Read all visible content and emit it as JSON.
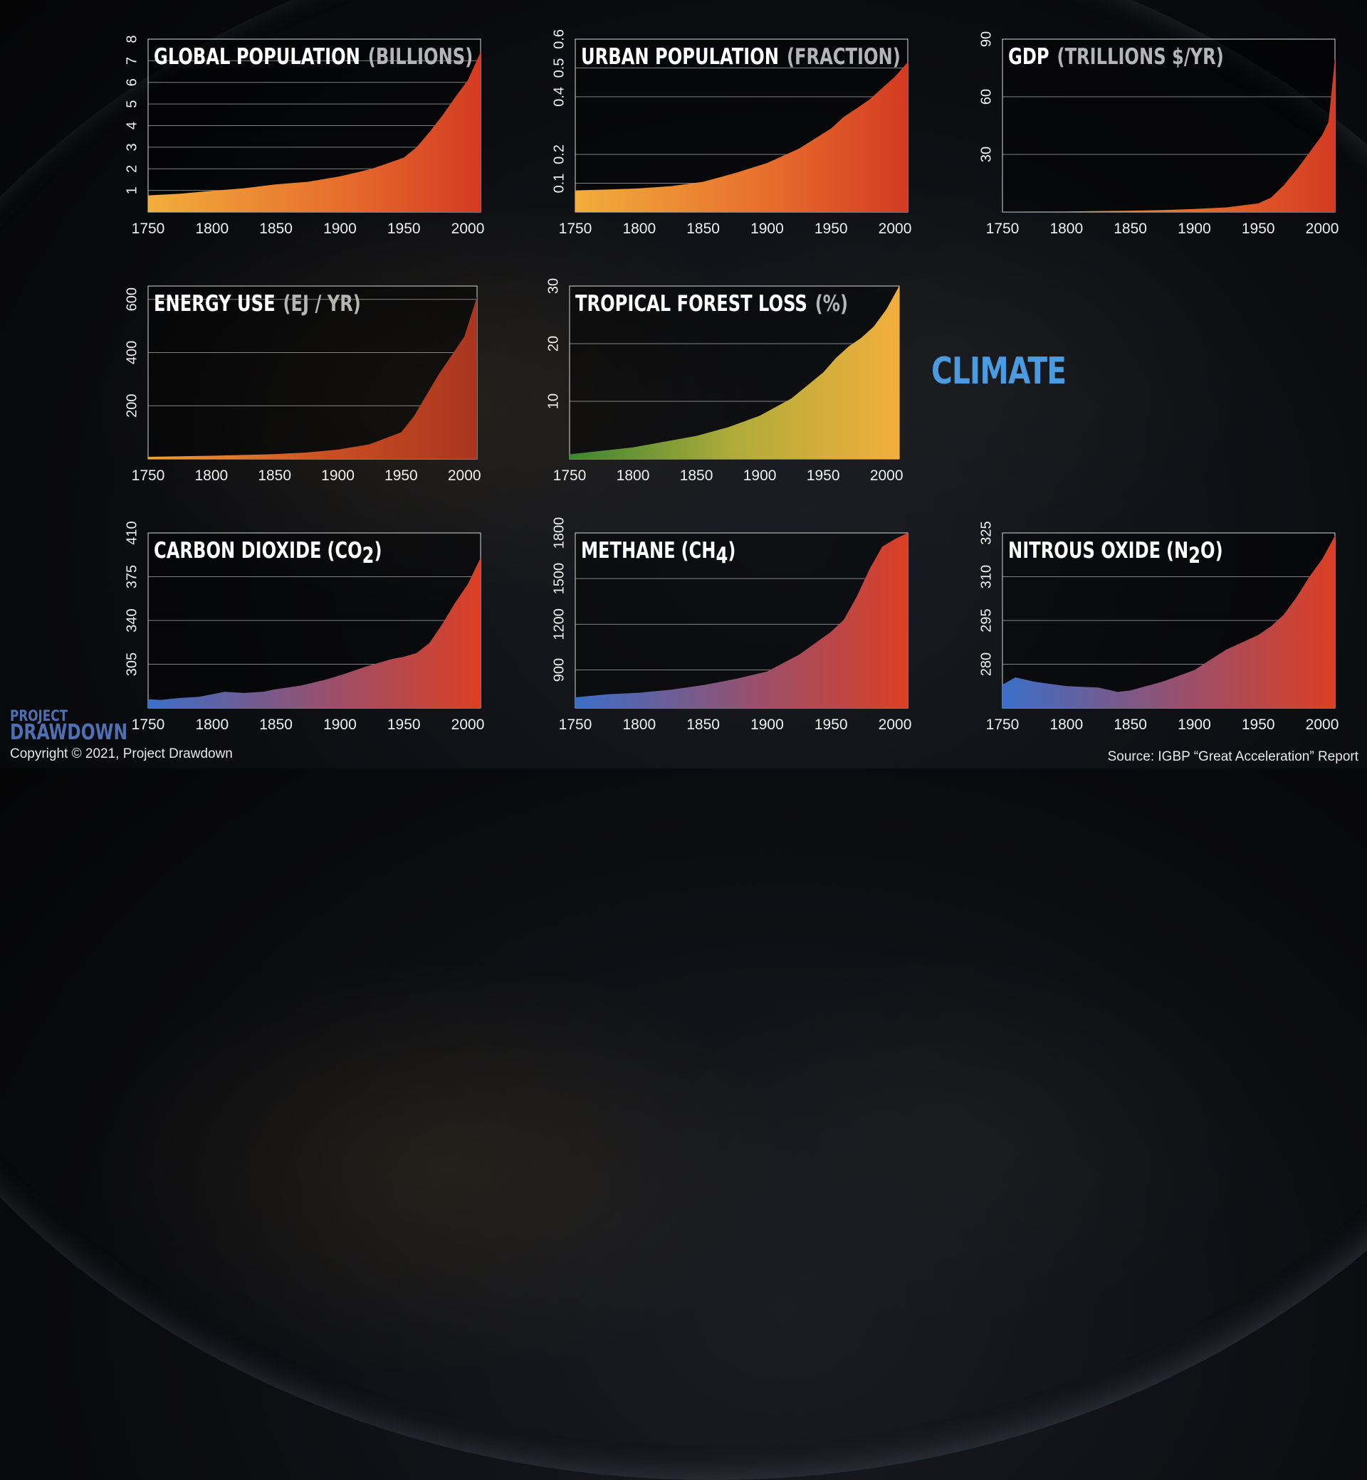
{
  "climate_label": "CLIMATE",
  "logo": {
    "line1": "PROJECT",
    "line2": "DRAWDOWN"
  },
  "copyright": "Copyright © 2021, Project Drawdown",
  "source": "Source: IGBP “Great Acceleration” Report",
  "colors": {
    "climate_label": "#4a9be0",
    "logo": "#4d6fb3",
    "warm_start": "#f0a83a",
    "warm_end": "#d63a22",
    "cool_start": "#3a6fc8",
    "forest_start": "#3f8a35",
    "forest_end": "#f0a83a"
  },
  "chart_data": [
    {
      "id": "global-population",
      "type": "area",
      "title": "GLOBAL POPULATION",
      "unit": "(BILLIONS)",
      "x": [
        1750,
        1775,
        1800,
        1825,
        1850,
        1860,
        1875,
        1900,
        1925,
        1950,
        1960,
        1970,
        1980,
        1990,
        2000,
        2010
      ],
      "y": [
        0.77,
        0.85,
        0.98,
        1.1,
        1.28,
        1.33,
        1.4,
        1.65,
        2.0,
        2.52,
        3.0,
        3.7,
        4.45,
        5.3,
        6.1,
        7.4
      ],
      "xlim": [
        1750,
        2010
      ],
      "ylim": [
        0,
        8
      ],
      "xticks": [
        1750,
        1800,
        1850,
        1900,
        1950,
        2000
      ],
      "yticks": [
        1,
        2,
        3,
        4,
        5,
        6,
        7,
        8
      ],
      "grid": true,
      "gradient": "warm"
    },
    {
      "id": "urban-population",
      "type": "area",
      "title": "URBAN POPULATION",
      "unit": "(FRACTION)",
      "x": [
        1750,
        1775,
        1800,
        1825,
        1850,
        1875,
        1900,
        1925,
        1950,
        1960,
        1970,
        1980,
        1990,
        2000,
        2010
      ],
      "y": [
        0.075,
        0.078,
        0.082,
        0.09,
        0.105,
        0.135,
        0.17,
        0.22,
        0.29,
        0.33,
        0.36,
        0.39,
        0.43,
        0.47,
        0.52
      ],
      "xlim": [
        1750,
        2010
      ],
      "ylim": [
        0,
        0.6
      ],
      "xticks": [
        1750,
        1800,
        1850,
        1900,
        1950,
        2000
      ],
      "yticks": [
        0.1,
        0.2,
        0.4,
        0.5,
        0.6
      ],
      "grid": true,
      "gradient": "warm"
    },
    {
      "id": "gdp",
      "type": "area",
      "title": "GDP",
      "unit": "(TRILLIONS $/YR)",
      "x": [
        1750,
        1800,
        1850,
        1875,
        1900,
        1925,
        1950,
        1960,
        1970,
        1980,
        1990,
        2000,
        2005,
        2010
      ],
      "y": [
        0.2,
        0.3,
        0.7,
        1.0,
        1.6,
        2.4,
        4.5,
        7.5,
        14,
        22,
        31,
        40,
        47,
        80
      ],
      "xlim": [
        1750,
        2010
      ],
      "ylim": [
        0,
        90
      ],
      "xticks": [
        1750,
        1800,
        1850,
        1900,
        1950,
        2000
      ],
      "yticks": [
        30,
        60,
        90
      ],
      "grid": true,
      "gradient": "warm"
    },
    {
      "id": "energy-use",
      "type": "area",
      "title": "ENERGY USE",
      "unit": "(EJ / YR)",
      "x": [
        1750,
        1800,
        1850,
        1875,
        1900,
        1925,
        1950,
        1960,
        1970,
        1980,
        1990,
        2000,
        2010
      ],
      "y": [
        8,
        12,
        18,
        24,
        35,
        55,
        100,
        160,
        240,
        320,
        390,
        460,
        610
      ],
      "xlim": [
        1750,
        2010
      ],
      "ylim": [
        0,
        650
      ],
      "xticks": [
        1750,
        1800,
        1850,
        1900,
        1950,
        2000
      ],
      "yticks": [
        200,
        400,
        600
      ],
      "grid": true,
      "gradient": "warm-dark"
    },
    {
      "id": "tropical-forest-loss",
      "type": "area",
      "title": "TROPICAL FOREST LOSS",
      "unit": "(%)",
      "x": [
        1750,
        1800,
        1850,
        1875,
        1900,
        1925,
        1950,
        1960,
        1970,
        1980,
        1990,
        2000,
        2010
      ],
      "y": [
        0.8,
        2.0,
        4.0,
        5.5,
        7.5,
        10.5,
        15,
        17.5,
        19.5,
        21,
        23,
        26,
        30
      ],
      "xlim": [
        1750,
        2010
      ],
      "ylim": [
        0,
        30
      ],
      "xticks": [
        1750,
        1800,
        1850,
        1900,
        1950,
        2000
      ],
      "yticks": [
        10,
        20,
        30
      ],
      "grid": true,
      "gradient": "forest"
    },
    {
      "id": "carbon-dioxide",
      "type": "area",
      "title": "CARBON DIOXIDE",
      "title_tail": "(CO",
      "title_sub": "2",
      "title_close": ")",
      "x": [
        1750,
        1760,
        1775,
        1790,
        1800,
        1810,
        1825,
        1840,
        1850,
        1870,
        1890,
        1900,
        1920,
        1940,
        1950,
        1960,
        1970,
        1980,
        1990,
        2000,
        2010
      ],
      "y": [
        277,
        276.5,
        278,
        279,
        281,
        283,
        282,
        283,
        285,
        288,
        293,
        296,
        303,
        309,
        311,
        314,
        322,
        337,
        354,
        369,
        390
      ],
      "xlim": [
        1750,
        2010
      ],
      "ylim": [
        270,
        410
      ],
      "xticks": [
        1750,
        1800,
        1850,
        1900,
        1950,
        2000
      ],
      "yticks": [
        305,
        340,
        375,
        410
      ],
      "grid": true,
      "gradient": "cool"
    },
    {
      "id": "methane",
      "type": "area",
      "title": "METHANE",
      "title_tail": "(CH",
      "title_sub": "4",
      "title_close": ")",
      "x": [
        1750,
        1775,
        1800,
        1825,
        1850,
        1875,
        1900,
        1925,
        1950,
        1960,
        1970,
        1980,
        1990,
        2000,
        2010
      ],
      "y": [
        720,
        740,
        750,
        770,
        800,
        840,
        890,
        1000,
        1150,
        1230,
        1380,
        1560,
        1710,
        1760,
        1800
      ],
      "xlim": [
        1750,
        2010
      ],
      "ylim": [
        650,
        1800
      ],
      "xticks": [
        1750,
        1800,
        1850,
        1900,
        1950,
        2000
      ],
      "yticks": [
        900,
        1200,
        1500,
        1800
      ],
      "grid": true,
      "gradient": "cool"
    },
    {
      "id": "nitrous-oxide",
      "type": "area",
      "title": "NITROUS OXIDE",
      "title_tail": "(N",
      "title_sub": "2",
      "title_close": "O)",
      "x": [
        1750,
        1760,
        1775,
        1800,
        1825,
        1840,
        1850,
        1875,
        1900,
        1925,
        1950,
        1960,
        1970,
        1980,
        1990,
        2000,
        2010
      ],
      "y": [
        273,
        275.5,
        274,
        272.5,
        272,
        270.5,
        271,
        274,
        278,
        285,
        290,
        293,
        297,
        303,
        310,
        316,
        324
      ],
      "xlim": [
        1750,
        2010
      ],
      "ylim": [
        265,
        325
      ],
      "xticks": [
        1750,
        1800,
        1850,
        1900,
        1950,
        2000
      ],
      "yticks": [
        280,
        295,
        310,
        325
      ],
      "grid": true,
      "gradient": "cool"
    }
  ]
}
